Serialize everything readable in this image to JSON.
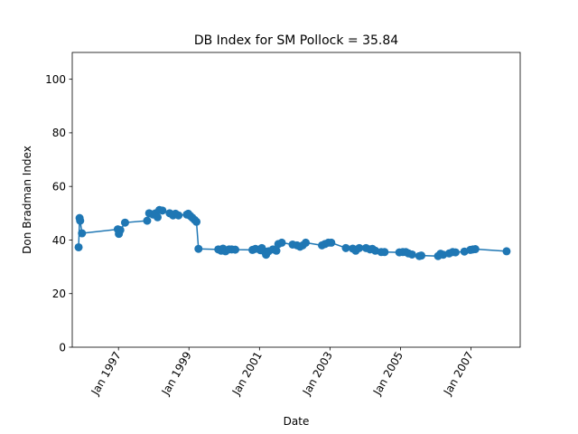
{
  "chart_data": {
    "type": "line",
    "title": "DB Index for SM Pollock = 35.84",
    "xlabel": "Date",
    "ylabel": "Don Bradman Index",
    "xlim": [
      "1995-09-10",
      "2008-05-25"
    ],
    "ylim": [
      0,
      110
    ],
    "grid": false,
    "line_color": "#1f77b4",
    "x_ticks": [
      {
        "date": "1997-01-01",
        "label": "Jan 1997"
      },
      {
        "date": "1999-01-01",
        "label": "Jan 1999"
      },
      {
        "date": "2001-01-01",
        "label": "Jan 2001"
      },
      {
        "date": "2003-01-01",
        "label": "Jan 2003"
      },
      {
        "date": "2005-01-01",
        "label": "Jan 2005"
      },
      {
        "date": "2007-01-01",
        "label": "Jan 2007"
      }
    ],
    "y_ticks": [
      0,
      20,
      40,
      60,
      80,
      100
    ],
    "series": [
      {
        "points": [
          [
            "1995-11-15",
            37.3
          ],
          [
            "1995-11-25",
            48.2
          ],
          [
            "1995-12-01",
            47.2
          ],
          [
            "1995-12-20",
            42.5
          ],
          [
            "1996-12-25",
            44.0
          ],
          [
            "1997-01-05",
            42.3
          ],
          [
            "1997-01-20",
            43.7
          ],
          [
            "1997-03-10",
            46.5
          ],
          [
            "1997-10-25",
            47.2
          ],
          [
            "1997-11-15",
            50.0
          ],
          [
            "1997-12-25",
            49.5
          ],
          [
            "1998-01-20",
            50.0
          ],
          [
            "1998-02-10",
            48.5
          ],
          [
            "1998-03-01",
            51.2
          ],
          [
            "1998-04-01",
            51.0
          ],
          [
            "1998-06-15",
            50.0
          ],
          [
            "1998-07-20",
            49.2
          ],
          [
            "1998-08-15",
            49.8
          ],
          [
            "1998-09-15",
            49.2
          ],
          [
            "1998-12-10",
            49.5
          ],
          [
            "1998-12-25",
            49.8
          ],
          [
            "1999-01-15",
            49.0
          ],
          [
            "1999-02-05",
            48.3
          ],
          [
            "1999-03-01",
            47.5
          ],
          [
            "1999-03-20",
            46.8
          ],
          [
            "1999-04-10",
            36.7
          ],
          [
            "1999-11-01",
            36.5
          ],
          [
            "1999-12-01",
            36.0
          ],
          [
            "1999-12-20",
            36.8
          ],
          [
            "2000-01-15",
            35.8
          ],
          [
            "2000-02-20",
            36.5
          ],
          [
            "2000-03-20",
            36.5
          ],
          [
            "2000-04-25",
            36.4
          ],
          [
            "2000-10-20",
            36.3
          ],
          [
            "2000-11-20",
            36.7
          ],
          [
            "2001-01-10",
            36.2
          ],
          [
            "2001-01-25",
            37.0
          ],
          [
            "2001-02-20",
            35.8
          ],
          [
            "2001-03-10",
            34.5
          ],
          [
            "2001-04-05",
            35.8
          ],
          [
            "2001-05-20",
            36.5
          ],
          [
            "2001-06-25",
            36.0
          ],
          [
            "2001-07-15",
            38.5
          ],
          [
            "2001-08-20",
            39.0
          ],
          [
            "2001-12-10",
            38.3
          ],
          [
            "2002-01-25",
            38.0
          ],
          [
            "2002-02-25",
            37.5
          ],
          [
            "2002-03-25",
            38.0
          ],
          [
            "2002-04-25",
            39.0
          ],
          [
            "2002-10-10",
            38.0
          ],
          [
            "2002-11-10",
            38.5
          ],
          [
            "2002-12-15",
            39.0
          ],
          [
            "2003-01-15",
            39.0
          ],
          [
            "2003-06-15",
            37.0
          ],
          [
            "2003-08-25",
            36.8
          ],
          [
            "2003-09-25",
            36.0
          ],
          [
            "2003-11-01",
            37.0
          ],
          [
            "2004-01-10",
            37.0
          ],
          [
            "2004-02-20",
            36.5
          ],
          [
            "2004-03-15",
            36.7
          ],
          [
            "2004-04-15",
            36.0
          ],
          [
            "2004-06-15",
            35.5
          ],
          [
            "2004-07-20",
            35.5
          ],
          [
            "2004-12-20",
            35.4
          ],
          [
            "2005-01-25",
            35.5
          ],
          [
            "2005-02-25",
            35.5
          ],
          [
            "2005-03-25",
            35.0
          ],
          [
            "2005-05-01",
            34.6
          ],
          [
            "2005-07-15",
            34.0
          ],
          [
            "2005-08-05",
            34.2
          ],
          [
            "2006-01-25",
            34.0
          ],
          [
            "2006-02-20",
            34.9
          ],
          [
            "2006-03-20",
            34.5
          ],
          [
            "2006-05-20",
            35.0
          ],
          [
            "2006-06-25",
            35.5
          ],
          [
            "2006-07-25",
            35.4
          ],
          [
            "2006-10-25",
            35.7
          ],
          [
            "2006-12-25",
            36.3
          ],
          [
            "2007-01-20",
            36.5
          ],
          [
            "2007-02-15",
            36.6
          ],
          [
            "2008-01-05",
            35.8
          ]
        ]
      }
    ]
  }
}
